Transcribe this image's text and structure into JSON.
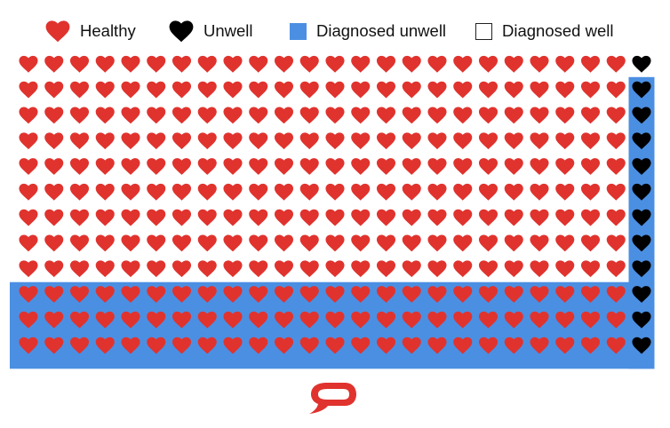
{
  "legend": {
    "healthy": "Healthy",
    "unwell": "Unwell",
    "diagnosed_unwell": "Diagnosed unwell",
    "diagnosed_well": "Diagnosed well"
  },
  "colors": {
    "healthy": "#e0332e",
    "unwell": "#000000",
    "diagnosed": "#4b8fe2",
    "logo": "#e0332e"
  },
  "grid": {
    "columns": 25,
    "rows": 12,
    "unwell_column": 25,
    "diagnosed_rows_all_columns": [
      10,
      11,
      12
    ],
    "diagnosed_rows_unwell_column": [
      2,
      3,
      4,
      5,
      6,
      7,
      8,
      9,
      10,
      11,
      12
    ],
    "icon": "heart-icon",
    "logo_icon": "speech-bubble-logo-icon"
  }
}
